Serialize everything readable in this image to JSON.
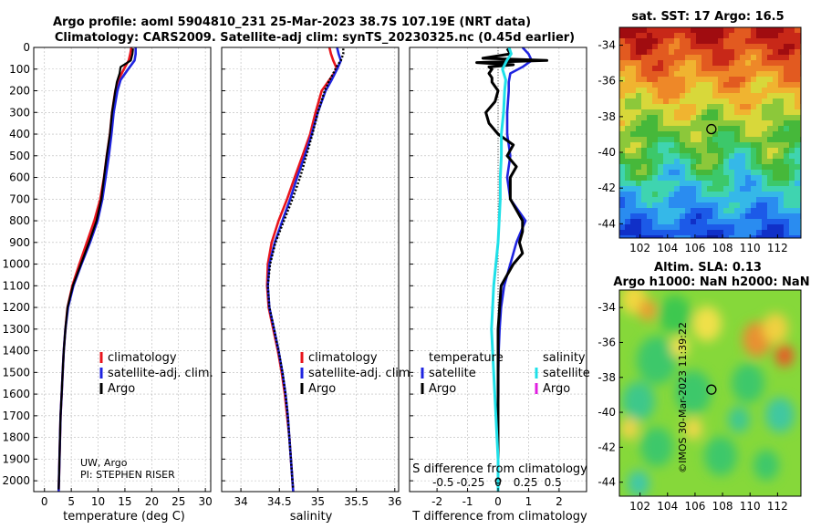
{
  "titles": {
    "line1": "Argo profile: aoml 5904810_231 25-Mar-2023 38.7S 107.19E (NRT data)",
    "line2": "Climatology: CARS2009. Satellite-adj clim: synTS_20230325.nc (0.45d earlier)"
  },
  "attribution": {
    "line1": "UW, Argo",
    "line2": "PI: STEPHEN RISER"
  },
  "timestamp": "©IMOS 30-Mar-2023 11:39:22",
  "colors": {
    "climatology": "#e8141c",
    "satellite": "#1f24e0",
    "argo": "#000000",
    "salinity_satellite": "#1ee0e8",
    "salinity_argo": "#e020e0",
    "grid": "#b8b8b8"
  },
  "chart_data": [
    {
      "type": "line",
      "name": "temperature",
      "xlabel": "temperature (deg C)",
      "xlim": [
        -2,
        31
      ],
      "ylim": [
        2050,
        0
      ],
      "xticks": [
        0,
        5,
        10,
        15,
        20,
        25,
        30
      ],
      "yticks": [
        0,
        100,
        200,
        300,
        400,
        500,
        600,
        700,
        800,
        900,
        1000,
        1100,
        1200,
        1300,
        1400,
        1500,
        1600,
        1700,
        1800,
        1900,
        2000
      ],
      "grid": true,
      "legend": [
        "climatology",
        "satellite-adj. clim.",
        "Argo"
      ],
      "series": [
        {
          "name": "climatology",
          "depth": [
            0,
            30,
            60,
            100,
            150,
            200,
            300,
            400,
            500,
            600,
            700,
            800,
            900,
            1000,
            1100,
            1200,
            1300,
            1400,
            1500,
            1600,
            1700,
            1800,
            1900,
            2000,
            2050
          ],
          "values": [
            16.2,
            16.0,
            15.7,
            14.8,
            13.8,
            13.2,
            12.6,
            12.2,
            11.6,
            11.1,
            10.4,
            9.3,
            7.9,
            6.5,
            5.2,
            4.3,
            3.9,
            3.6,
            3.4,
            3.2,
            3.0,
            2.9,
            2.8,
            2.7,
            2.65
          ]
        },
        {
          "name": "satellite-adj. clim.",
          "depth": [
            0,
            30,
            60,
            100,
            150,
            200,
            300,
            400,
            500,
            600,
            700,
            800,
            900,
            1000,
            1100,
            1200,
            1300,
            1400,
            1500,
            1600,
            1700,
            1800,
            1900,
            2000,
            2050
          ],
          "values": [
            17.0,
            17.0,
            16.8,
            15.6,
            14.2,
            13.6,
            12.9,
            12.5,
            12.0,
            11.4,
            10.8,
            9.9,
            8.5,
            6.9,
            5.4,
            4.4,
            3.9,
            3.6,
            3.4,
            3.2,
            3.0,
            2.9,
            2.8,
            2.7,
            2.65
          ]
        },
        {
          "name": "Argo",
          "depth": [
            5,
            30,
            60,
            90,
            120,
            160,
            200,
            300,
            400,
            500,
            600,
            700,
            800,
            900,
            1000,
            1100,
            1200,
            1300,
            1400,
            1500,
            1600,
            1700,
            1800,
            1900,
            2000,
            2040
          ],
          "values": [
            16.5,
            16.4,
            16.1,
            14.2,
            14.0,
            13.5,
            13.2,
            12.6,
            12.2,
            11.6,
            11.1,
            10.6,
            9.7,
            8.3,
            6.8,
            5.3,
            4.3,
            3.9,
            3.6,
            3.4,
            3.2,
            3.0,
            2.9,
            2.8,
            2.7,
            2.65
          ]
        }
      ]
    },
    {
      "type": "line",
      "name": "salinity",
      "xlabel": "salinity",
      "xlim": [
        33.75,
        36.05
      ],
      "ylim": [
        2050,
        0
      ],
      "xticks": [
        34,
        34.5,
        35,
        35.5,
        36
      ],
      "grid": true,
      "legend": [
        "climatology",
        "satellite-adj. clim.",
        "Argo"
      ],
      "series": [
        {
          "name": "climatology",
          "depth": [
            0,
            30,
            60,
            100,
            150,
            200,
            300,
            400,
            500,
            600,
            700,
            800,
            900,
            1000,
            1100,
            1200,
            1300,
            1400,
            1500,
            1600,
            1700,
            1800,
            1900,
            2000,
            2050
          ],
          "values": [
            35.15,
            35.17,
            35.2,
            35.25,
            35.15,
            35.05,
            34.97,
            34.9,
            34.8,
            34.7,
            34.6,
            34.49,
            34.4,
            34.35,
            34.34,
            34.36,
            34.42,
            34.48,
            34.53,
            34.57,
            34.6,
            34.63,
            34.65,
            34.67,
            34.68
          ]
        },
        {
          "name": "satellite-adj. clim.",
          "depth": [
            0,
            30,
            60,
            100,
            150,
            200,
            300,
            400,
            500,
            600,
            700,
            800,
            900,
            1000,
            1100,
            1200,
            1300,
            1400,
            1500,
            1600,
            1700,
            1800,
            1900,
            2000,
            2050
          ],
          "values": [
            35.25,
            35.27,
            35.3,
            35.25,
            35.18,
            35.1,
            35.0,
            34.92,
            34.83,
            34.73,
            34.64,
            34.54,
            34.44,
            34.37,
            34.35,
            34.37,
            34.43,
            34.49,
            34.54,
            34.58,
            34.61,
            34.63,
            34.65,
            34.67,
            34.68
          ]
        },
        {
          "name": "Argo",
          "depth": [
            5,
            30,
            60,
            90,
            120,
            160,
            200,
            300,
            400,
            500,
            600,
            700,
            800,
            900,
            1000,
            1100,
            1200,
            1300,
            1400,
            1500,
            1600,
            1700,
            1800,
            1900,
            2000,
            2040
          ],
          "values": [
            35.33,
            35.33,
            35.3,
            35.24,
            35.2,
            35.14,
            35.09,
            35.0,
            34.93,
            34.85,
            34.77,
            34.67,
            34.56,
            34.45,
            34.38,
            34.35,
            34.37,
            34.43,
            34.49,
            34.54,
            34.58,
            34.61,
            34.63,
            34.65,
            34.67,
            34.68
          ]
        }
      ]
    },
    {
      "type": "line",
      "name": "difference",
      "xlabel": "T difference from climatology",
      "xlabel_top": "S difference from climatology",
      "xlim": [
        -2.9,
        2.9
      ],
      "ylim": [
        2050,
        0
      ],
      "xticks": [
        -2,
        -1,
        0,
        1,
        2
      ],
      "xticks_top": [
        -0.5,
        -0.25,
        0,
        0.25,
        0.5
      ],
      "xticklabels_top": [
        "-0.5",
        "-0.25",
        "0",
        "0.25",
        "0.5"
      ],
      "grid": true,
      "legend_temperature": [
        "temperature",
        "satellite",
        "Argo"
      ],
      "legend_salinity": [
        "salinity",
        "satellite",
        "Argo"
      ],
      "series": [
        {
          "name": "temperature satellite",
          "depth": [
            0,
            30,
            60,
            90,
            120,
            160,
            200,
            300,
            400,
            500,
            600,
            700,
            800,
            900,
            1000,
            1100,
            1200,
            1300,
            1400,
            1500,
            1600,
            1700,
            1800,
            1900,
            2000,
            2050
          ],
          "values": [
            0.8,
            1.0,
            1.1,
            0.8,
            0.4,
            0.35,
            0.35,
            0.3,
            0.3,
            0.4,
            0.3,
            0.4,
            0.9,
            0.6,
            0.4,
            0.2,
            0.1,
            0.05,
            0.02,
            0.01,
            0.01,
            0.0,
            0.0,
            0.0,
            0.0,
            0.0
          ]
        },
        {
          "name": "temperature Argo",
          "depth": [
            5,
            30,
            50,
            60,
            70,
            80,
            90,
            100,
            120,
            140,
            160,
            200,
            250,
            300,
            350,
            400,
            450,
            500,
            550,
            600,
            700,
            800,
            850,
            900,
            950,
            1000,
            1050,
            1100,
            1200,
            1300,
            1400,
            1500,
            1600,
            1700,
            1800,
            1900,
            2000,
            2040
          ],
          "values": [
            0.3,
            0.4,
            -0.5,
            1.6,
            -0.7,
            0.5,
            -0.3,
            -0.2,
            -0.3,
            -0.2,
            -0.2,
            0.0,
            -0.1,
            -0.4,
            -0.3,
            0.0,
            0.5,
            0.3,
            0.6,
            0.4,
            0.4,
            0.8,
            0.8,
            0.7,
            0.8,
            0.5,
            0.3,
            0.1,
            0.05,
            0.0,
            0.0,
            0.0,
            0.0,
            0.0,
            0.0,
            0.0,
            0.0,
            0.0
          ]
        },
        {
          "name": "salinity satellite",
          "depth": [
            0,
            30,
            60,
            100,
            150,
            200,
            300,
            400,
            500,
            600,
            700,
            800,
            900,
            1000,
            1100,
            1200,
            1300,
            1400,
            1500,
            1600,
            1700,
            1800,
            1900,
            2000,
            2050
          ],
          "values": [
            0.1,
            0.12,
            0.08,
            0.04,
            0.07,
            0.06,
            0.05,
            0.03,
            0.03,
            0.02,
            0.02,
            0.01,
            0.0,
            -0.02,
            -0.04,
            -0.05,
            -0.06,
            -0.05,
            -0.04,
            -0.03,
            -0.02,
            -0.01,
            0.0,
            0.0,
            0.0
          ]
        }
      ]
    },
    {
      "type": "heatmap",
      "name": "sat-sst",
      "title": "sat. SST: 17 Argo: 16.5",
      "xticks": [
        102,
        104,
        106,
        108,
        110,
        112
      ],
      "yticks": [
        -34,
        -36,
        -38,
        -40,
        -42,
        -44
      ],
      "xlim": [
        100.5,
        113.7
      ],
      "ylim": [
        -33,
        -44.8
      ],
      "profile_location": [
        107.19,
        -38.7
      ]
    },
    {
      "type": "heatmap",
      "name": "altimetry-sla",
      "title": "Altim. SLA: 0.13",
      "subtitle": "Argo h1000: NaN h2000: NaN",
      "xticks": [
        102,
        104,
        106,
        108,
        110,
        112
      ],
      "yticks": [
        -34,
        -36,
        -38,
        -40,
        -42,
        -44
      ],
      "xlim": [
        100.5,
        113.7
      ],
      "ylim": [
        -33,
        -44.8
      ],
      "profile_location": [
        107.19,
        -38.7
      ]
    }
  ]
}
